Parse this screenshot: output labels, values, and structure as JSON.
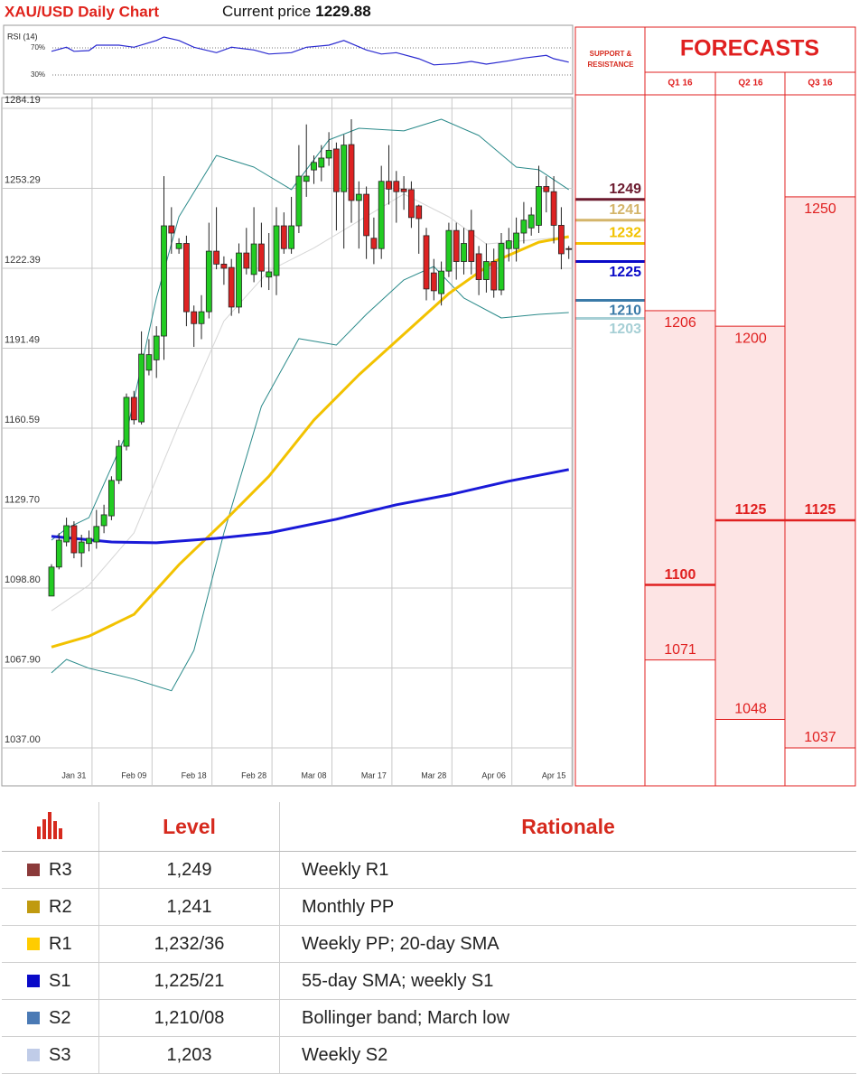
{
  "header": {
    "title": "XAU/USD Daily Chart",
    "current_price_label": "Current price",
    "current_price": 1229.88
  },
  "chart_data": [
    {
      "type": "candlestick",
      "categories": [
        null,
        null,
        null,
        "Jan 31",
        null,
        null,
        null,
        null,
        null,
        null,
        null,
        "Feb 09",
        null,
        null,
        null,
        null,
        null,
        null,
        null,
        "Feb 18",
        null,
        null,
        null,
        null,
        null,
        null,
        null,
        "Feb 28",
        null,
        null,
        null,
        null,
        null,
        null,
        null,
        "Mar 08",
        null,
        null,
        null,
        null,
        null,
        null,
        null,
        "Mar 17",
        null,
        null,
        null,
        null,
        null,
        null,
        null,
        "Mar 28",
        null,
        null,
        null,
        null,
        null,
        null,
        null,
        "Apr 06",
        null,
        null,
        null,
        null,
        null,
        null,
        null,
        "Apr 15",
        null,
        null
      ],
      "open": [
        1095.7,
        1106.9,
        1116.6,
        1122.9,
        1112.4,
        1116,
        1116.6,
        1122.9,
        1126.7,
        1140.4,
        1153.6,
        1172.5,
        1163,
        1183,
        1187,
        1196.2,
        1238.8,
        1230,
        1232,
        1205.6,
        1201,
        1205.6,
        1229,
        1224,
        1222.7,
        1207.4,
        1228.3,
        1220,
        1231.8,
        1219,
        1219.6,
        1238.8,
        1230,
        1238.8,
        1256,
        1260.4,
        1261.5,
        1265,
        1268.5,
        1252,
        1270.2,
        1248.6,
        1251,
        1234,
        1230,
        1256,
        1256,
        1253,
        1252.8,
        1246.5,
        1235,
        1220.6,
        1212.6,
        1221.3,
        1237,
        1225,
        1237,
        1228,
        1218,
        1225,
        1214,
        1230,
        1230,
        1236,
        1238,
        1239,
        1254,
        1252,
        1239,
        1230
      ],
      "high": [
        1108,
        1120,
        1126,
        1124.6,
        1119.4,
        1121,
        1129,
        1131,
        1142,
        1156,
        1174,
        1175,
        1198,
        1195,
        1200,
        1258,
        1246,
        1234,
        1235,
        1208,
        1212,
        1240,
        1246,
        1227,
        1226,
        1232,
        1238,
        1246,
        1240,
        1236,
        1246,
        1244,
        1250,
        1270,
        1278,
        1266,
        1270,
        1275,
        1271,
        1274,
        1280,
        1256,
        1254,
        1242,
        1262,
        1270,
        1260,
        1258,
        1256,
        1247,
        1238,
        1226,
        1225,
        1240,
        1240,
        1238,
        1245,
        1231,
        1232,
        1230,
        1236,
        1238,
        1242,
        1248,
        1246,
        1262,
        1258,
        1258,
        1246,
        1231
      ],
      "low": [
        1095.7,
        1106,
        1114.9,
        1110.3,
        1106.9,
        1113,
        1114,
        1120,
        1125,
        1139,
        1152,
        1162,
        1162,
        1181,
        1180,
        1187,
        1228,
        1228,
        1200,
        1192,
        1195,
        1203,
        1222,
        1216,
        1204,
        1205,
        1220,
        1217,
        1215,
        1214,
        1212,
        1228,
        1228,
        1236,
        1250,
        1255,
        1256,
        1262,
        1237,
        1230,
        1240,
        1230,
        1226,
        1224,
        1226,
        1247,
        1240,
        1245,
        1238,
        1228,
        1210,
        1210,
        1208,
        1219,
        1218,
        1220,
        1220,
        1212,
        1213,
        1211,
        1212,
        1225,
        1225,
        1232,
        1235,
        1236,
        1244,
        1232,
        1222,
        1226
      ],
      "close": [
        1106.9,
        1117.3,
        1122.9,
        1112.4,
        1116.6,
        1118,
        1122.6,
        1127.1,
        1140.4,
        1153.6,
        1172.5,
        1163.8,
        1189.2,
        1189,
        1196.2,
        1238.8,
        1236,
        1232,
        1205.6,
        1201,
        1205.6,
        1229,
        1224,
        1222.4,
        1207.4,
        1228.3,
        1222.4,
        1231.8,
        1221.3,
        1221,
        1238.8,
        1230,
        1238.8,
        1258,
        1258,
        1263.3,
        1265,
        1268,
        1252,
        1270,
        1248.6,
        1251,
        1235,
        1230,
        1256,
        1253,
        1252,
        1252,
        1242,
        1241.6,
        1214.4,
        1213.7,
        1221.3,
        1237,
        1225,
        1232,
        1225,
        1218,
        1225,
        1214,
        1232,
        1233,
        1236,
        1241,
        1243,
        1254,
        1252,
        1239,
        1228,
        1229.88
      ],
      "up_color": "#22cc22",
      "down_color": "#dd2222",
      "lines": [
        {
          "color": "#d6d6d6",
          "width": 1,
          "x": [
            0,
            5,
            11,
            17,
            23,
            29,
            35,
            41,
            47,
            53,
            58,
            69
          ],
          "values": [
            1090,
            1099.9,
            1120.1,
            1162,
            1202,
            1221.4,
            1230.2,
            1240.7,
            1251.1,
            1242.3,
            1231.8,
            1234.6
          ]
        },
        {
          "color": "#2a8a8a",
          "width": 1,
          "x": [
            0,
            2,
            5,
            10,
            14,
            17,
            22,
            27,
            32,
            37,
            41,
            47,
            52,
            57,
            62,
            65,
            69
          ],
          "values": [
            1117.3,
            1121.8,
            1126,
            1158.5,
            1210.9,
            1242.3,
            1266,
            1261.5,
            1252.8,
            1272,
            1276.5,
            1275.5,
            1280,
            1273.7,
            1261.5,
            1260.5,
            1252.8
          ]
        },
        {
          "color": "#2a8a8a",
          "width": 1,
          "x": [
            0,
            2,
            5,
            11,
            16,
            19,
            23,
            28,
            33,
            38,
            42,
            47,
            51,
            55,
            60,
            65,
            69
          ],
          "values": [
            1066,
            1071.2,
            1067.8,
            1063.6,
            1059.1,
            1074.7,
            1120.1,
            1169,
            1195.2,
            1192.7,
            1204.6,
            1217.9,
            1223.1,
            1210.9,
            1203.2,
            1204.6,
            1205.3
          ]
        },
        {
          "color": "#f2c200",
          "width": 3,
          "x": [
            0,
            5,
            11,
            17,
            23,
            29,
            35,
            41,
            47,
            53,
            59,
            65,
            69
          ],
          "values": [
            1076,
            1080.2,
            1088.6,
            1107.8,
            1124.5,
            1142,
            1163.7,
            1181.2,
            1196.9,
            1212.6,
            1224.9,
            1232.5,
            1234.6
          ]
        },
        {
          "color": "#1a1ad8",
          "width": 3,
          "x": [
            0,
            8,
            14,
            22,
            29,
            38,
            46,
            53,
            61,
            69
          ],
          "values": [
            1118.8,
            1116.6,
            1116.3,
            1118,
            1120.1,
            1125.4,
            1131,
            1134.8,
            1140.1,
            1144.6
          ]
        }
      ],
      "ylim": [
        1037,
        1284.19
      ],
      "yticks": [
        1284.19,
        1253.29,
        1222.39,
        1191.49,
        1160.59,
        {
          "value": 1129.7,
          "label": "1129.70"
        },
        {
          "value": 1098.8,
          "label": "1098.80"
        },
        {
          "value": 1067.9,
          "label": "1067.90"
        },
        {
          "value": 1037,
          "label": "1037.00"
        }
      ],
      "grid": true
    },
    {
      "type": "line",
      "title": "RSI (14)",
      "color": "#2a2ad0",
      "x": [
        0,
        2,
        3,
        5,
        6,
        9,
        11,
        14,
        15,
        17,
        19,
        22,
        24,
        27,
        29,
        32,
        34,
        37,
        39,
        42,
        44,
        46,
        49,
        51,
        54,
        56,
        58,
        61,
        63,
        66,
        67,
        69
      ],
      "values": [
        65,
        71,
        65,
        66,
        74,
        74,
        71,
        81,
        86,
        81,
        71,
        63,
        71,
        67,
        61,
        63,
        71,
        74,
        81,
        67,
        61,
        63,
        54,
        45,
        47,
        50,
        46,
        51,
        55,
        59,
        54,
        49
      ],
      "ylim": [
        10,
        90
      ],
      "yticks": [
        {
          "value": 70,
          "label": "70%"
        },
        {
          "value": 30,
          "label": "30%"
        }
      ]
    }
  ],
  "support_resistance": {
    "title": [
      "SUPPORT &",
      "RESISTANCE"
    ],
    "levels": [
      {
        "value": 1249,
        "color": "#6b1a2e"
      },
      {
        "value": 1241,
        "color": "#d4b56a"
      },
      {
        "value": 1232,
        "color": "#f2c200"
      },
      {
        "value": 1225,
        "color": "#0a0ac8"
      },
      {
        "value": 1210,
        "color": "#3a7aa8"
      },
      {
        "value": 1203,
        "color": "#a6cfd5"
      }
    ]
  },
  "forecasts": {
    "title": "FORECASTS",
    "color": "#e02020",
    "fill": "#fde4e4",
    "columns": [
      {
        "label": "Q1 16",
        "high": 1206,
        "mid": 1100,
        "low": 1071
      },
      {
        "label": "Q2 16",
        "high": 1200,
        "mid": 1125,
        "low": 1048
      },
      {
        "label": "Q3 16",
        "high": 1250,
        "mid": 1125,
        "low": 1037
      }
    ]
  },
  "table": {
    "headers": [
      "Level",
      "Rationale"
    ],
    "rows": [
      {
        "name": "R3",
        "color": "#8b3a3a",
        "level": "1,249",
        "rationale": "Weekly R1"
      },
      {
        "name": "R2",
        "color": "#c09a10",
        "level": "1,241",
        "rationale": "Monthly PP"
      },
      {
        "name": "R1",
        "color": "#ffcc00",
        "level": "1,232/36",
        "rationale": "Weekly PP; 20-day SMA"
      },
      {
        "name": "S1",
        "color": "#0a0ac8",
        "level": "1,225/21",
        "rationale": "55-day SMA; weekly S1"
      },
      {
        "name": "S2",
        "color": "#4a7ab5",
        "level": "1,210/08",
        "rationale": "Bollinger band; March low"
      },
      {
        "name": "S3",
        "color": "#c0cce8",
        "level": "1,203",
        "rationale": "Weekly S2"
      }
    ]
  }
}
